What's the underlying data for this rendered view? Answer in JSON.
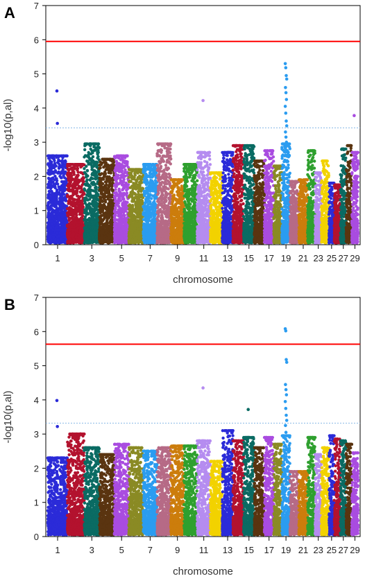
{
  "chart_data": [
    {
      "panel_label": "A",
      "type": "scatter",
      "subtype": "manhattan",
      "xlabel": "chromosome",
      "ylabel": "-log10(p,al)",
      "ylim": [
        0,
        7
      ],
      "yticks": [
        "0",
        "1",
        "2",
        "3",
        "4",
        "5",
        "6",
        "7"
      ],
      "xtick_labels": [
        "1",
        "3",
        "5",
        "7",
        "9",
        "11",
        "13",
        "15",
        "17",
        "19",
        "21",
        "23",
        "25",
        "27",
        "29"
      ],
      "chromosomes": 29,
      "genomewide_threshold": 5.95,
      "suggestive_threshold": 3.42,
      "threshold_colors": {
        "genomewide": "#ff0000",
        "suggestive": "#87b8e6"
      },
      "colors": [
        "#2b2bd8",
        "#b3122e",
        "#0a6b63",
        "#5a3410",
        "#a94ce0",
        "#8a8a24",
        "#2b9cf0",
        "#b66a86",
        "#cc7d0c",
        "#2fa02f",
        "#b58cf0",
        "#f2d200"
      ],
      "chromosome_max": [
        2.6,
        2.35,
        2.95,
        2.5,
        2.6,
        2.2,
        2.35,
        2.95,
        1.9,
        2.35,
        2.7,
        2.1,
        2.7,
        2.9,
        2.9,
        2.45,
        2.75,
        2.3,
        2.95,
        1.85,
        1.9,
        2.75,
        2.1,
        2.45,
        1.8,
        1.75,
        2.8,
        2.9,
        2.7
      ],
      "peaks": [
        {
          "chr": 1,
          "values": [
            4.5,
            3.55
          ]
        },
        {
          "chr": 11,
          "values": [
            4.22
          ]
        },
        {
          "chr": 19,
          "values": [
            5.3,
            5.18,
            4.95,
            4.85,
            4.6,
            4.45,
            4.25,
            4.05,
            3.85,
            3.62,
            3.48,
            3.3,
            3.15,
            3.0
          ]
        },
        {
          "chr": 29,
          "values": [
            3.78
          ]
        }
      ]
    },
    {
      "panel_label": "B",
      "type": "scatter",
      "subtype": "manhattan",
      "xlabel": "chromosome",
      "ylabel": "-log10(p,al)",
      "ylim": [
        0,
        7
      ],
      "yticks": [
        "0",
        "1",
        "2",
        "3",
        "4",
        "5",
        "6",
        "7"
      ],
      "xtick_labels": [
        "1",
        "3",
        "5",
        "7",
        "9",
        "11",
        "13",
        "15",
        "17",
        "19",
        "21",
        "23",
        "25",
        "27",
        "29"
      ],
      "chromosomes": 29,
      "genomewide_threshold": 5.63,
      "suggestive_threshold": 3.32,
      "threshold_colors": {
        "genomewide": "#ff0000",
        "suggestive": "#87b8e6"
      },
      "colors": [
        "#2b2bd8",
        "#b3122e",
        "#0a6b63",
        "#5a3410",
        "#a94ce0",
        "#8a8a24",
        "#2b9cf0",
        "#b66a86",
        "#cc7d0c",
        "#2fa02f",
        "#b58cf0",
        "#f2d200"
      ],
      "chromosome_max": [
        2.3,
        3.0,
        2.6,
        2.4,
        2.7,
        2.6,
        2.5,
        2.6,
        2.65,
        2.65,
        2.8,
        2.2,
        3.1,
        2.8,
        2.9,
        2.6,
        2.9,
        2.7,
        2.95,
        1.9,
        1.9,
        2.9,
        2.4,
        2.6,
        2.95,
        2.85,
        2.8,
        2.7,
        2.45
      ],
      "peaks": [
        {
          "chr": 1,
          "values": [
            3.98,
            3.22
          ]
        },
        {
          "chr": 11,
          "values": [
            4.35
          ]
        },
        {
          "chr": 15,
          "values": [
            3.72
          ]
        },
        {
          "chr": 19,
          "values": [
            6.08,
            6.02,
            5.18,
            5.1,
            4.45,
            4.3,
            4.15,
            3.95,
            3.75,
            3.55,
            3.4,
            3.25,
            3.05,
            2.95
          ]
        }
      ]
    }
  ]
}
